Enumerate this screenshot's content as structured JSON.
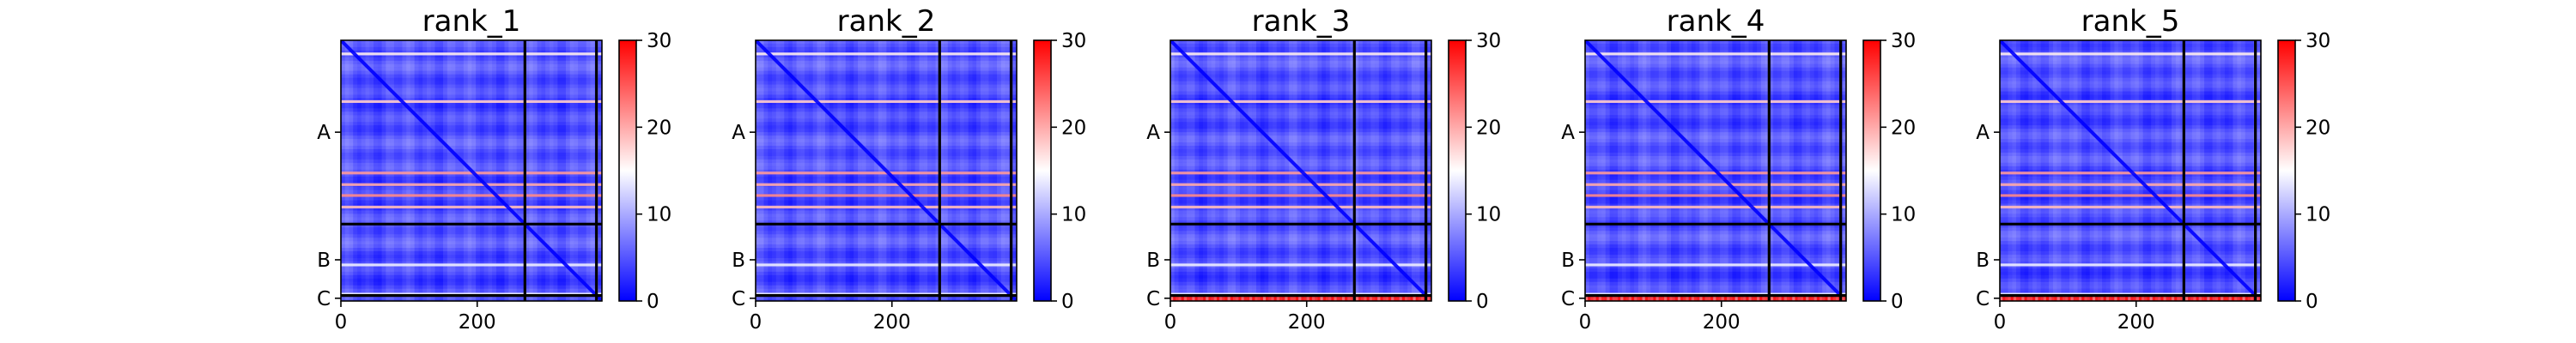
{
  "chart_data": [
    {
      "type": "heatmap",
      "title": "rank_1",
      "x_ticks": [
        0,
        200
      ],
      "x_range": [
        0,
        383
      ],
      "y_chains": [
        "A",
        "B",
        "C"
      ],
      "chain_boundaries": [
        270,
        375
      ],
      "total_length": 383,
      "colorbar": {
        "ticks": [
          0,
          10,
          20,
          30
        ],
        "range": [
          0,
          30
        ],
        "colormap": "bwr"
      },
      "row_bands": [
        {
          "row": 20,
          "value": 16
        },
        {
          "row": 90,
          "value": 18
        },
        {
          "row": 195,
          "value": 21
        },
        {
          "row": 212,
          "value": 20
        },
        {
          "row": 228,
          "value": 22
        },
        {
          "row": 245,
          "value": 19
        },
        {
          "row": 330,
          "value": 14
        },
        {
          "row": 373,
          "value": 14
        }
      ]
    },
    {
      "type": "heatmap",
      "title": "rank_2",
      "x_ticks": [
        0,
        200
      ],
      "x_range": [
        0,
        383
      ],
      "y_chains": [
        "A",
        "B",
        "C"
      ],
      "chain_boundaries": [
        270,
        375
      ],
      "total_length": 383,
      "colorbar": {
        "ticks": [
          0,
          10,
          20,
          30
        ],
        "range": [
          0,
          30
        ],
        "colormap": "bwr"
      },
      "row_bands": [
        {
          "row": 20,
          "value": 16
        },
        {
          "row": 90,
          "value": 18
        },
        {
          "row": 195,
          "value": 21
        },
        {
          "row": 212,
          "value": 20
        },
        {
          "row": 228,
          "value": 22
        },
        {
          "row": 245,
          "value": 19
        },
        {
          "row": 330,
          "value": 14
        },
        {
          "row": 373,
          "value": 14
        }
      ]
    },
    {
      "type": "heatmap",
      "title": "rank_3",
      "x_ticks": [
        0,
        200
      ],
      "x_range": [
        0,
        383
      ],
      "y_chains": [
        "A",
        "B",
        "C"
      ],
      "chain_boundaries": [
        270,
        375
      ],
      "total_length": 383,
      "colorbar": {
        "ticks": [
          0,
          10,
          20,
          30
        ],
        "range": [
          0,
          30
        ],
        "colormap": "bwr"
      },
      "row_bands": [
        {
          "row": 20,
          "value": 16
        },
        {
          "row": 90,
          "value": 18
        },
        {
          "row": 195,
          "value": 21
        },
        {
          "row": 212,
          "value": 20
        },
        {
          "row": 228,
          "value": 22
        },
        {
          "row": 245,
          "value": 19
        },
        {
          "row": 330,
          "value": 14
        },
        {
          "row": 373,
          "value": 14
        }
      ],
      "chain_c_rows_value": 27
    },
    {
      "type": "heatmap",
      "title": "rank_4",
      "x_ticks": [
        0,
        200
      ],
      "x_range": [
        0,
        383
      ],
      "y_chains": [
        "A",
        "B",
        "C"
      ],
      "chain_boundaries": [
        270,
        375
      ],
      "total_length": 383,
      "colorbar": {
        "ticks": [
          0,
          10,
          20,
          30
        ],
        "range": [
          0,
          30
        ],
        "colormap": "bwr"
      },
      "row_bands": [
        {
          "row": 20,
          "value": 16
        },
        {
          "row": 90,
          "value": 18
        },
        {
          "row": 195,
          "value": 21
        },
        {
          "row": 212,
          "value": 20
        },
        {
          "row": 228,
          "value": 22
        },
        {
          "row": 245,
          "value": 19
        },
        {
          "row": 330,
          "value": 14
        },
        {
          "row": 373,
          "value": 14
        }
      ],
      "chain_c_rows_value": 27
    },
    {
      "type": "heatmap",
      "title": "rank_5",
      "x_ticks": [
        0,
        200
      ],
      "x_range": [
        0,
        383
      ],
      "y_chains": [
        "A",
        "B",
        "C"
      ],
      "chain_boundaries": [
        270,
        375
      ],
      "total_length": 383,
      "colorbar": {
        "ticks": [
          0,
          10,
          20,
          30
        ],
        "range": [
          0,
          30
        ],
        "colormap": "bwr"
      },
      "row_bands": [
        {
          "row": 20,
          "value": 16
        },
        {
          "row": 90,
          "value": 18
        },
        {
          "row": 195,
          "value": 21
        },
        {
          "row": 212,
          "value": 20
        },
        {
          "row": 228,
          "value": 22
        },
        {
          "row": 245,
          "value": 19
        },
        {
          "row": 330,
          "value": 14
        },
        {
          "row": 373,
          "value": 14
        }
      ],
      "chain_c_rows_value": 27
    }
  ]
}
